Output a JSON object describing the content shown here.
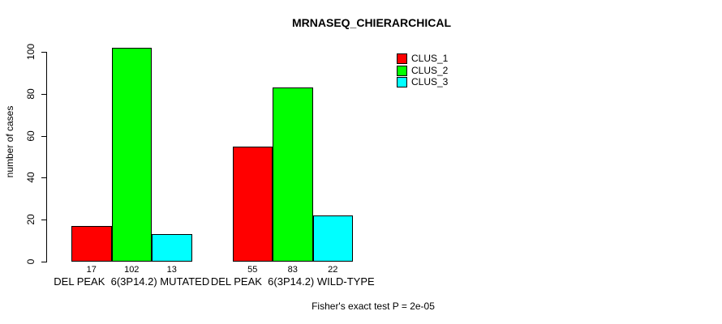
{
  "title": "MRNASEQ_CHIERARCHICAL",
  "ylabel": "number of cases",
  "footer": "Fisher's exact test P = 2e-05",
  "chart_data": {
    "type": "bar",
    "title": "MRNASEQ_CHIERARCHICAL",
    "xlabel": "",
    "ylabel": "number of cases",
    "categories": [
      "DEL PEAK  6(3P14.2) MUTATED",
      "DEL PEAK  6(3P14.2) WILD-TYPE"
    ],
    "series": [
      {
        "name": "CLUS_1",
        "color": "#FF0000",
        "values": [
          17,
          55
        ]
      },
      {
        "name": "CLUS_2",
        "color": "#00FF00",
        "values": [
          102,
          83
        ]
      },
      {
        "name": "CLUS_3",
        "color": "#00FFFF",
        "values": [
          13,
          22
        ]
      }
    ],
    "bar_value_labels": [
      [
        17,
        102,
        13
      ],
      [
        55,
        83,
        22
      ]
    ],
    "yticks": [
      0,
      20,
      40,
      60,
      80,
      100
    ],
    "ylim": [
      0,
      102
    ],
    "grid": false,
    "legend_position": "top-right",
    "annotation": "Fisher's exact test P = 2e-05"
  }
}
